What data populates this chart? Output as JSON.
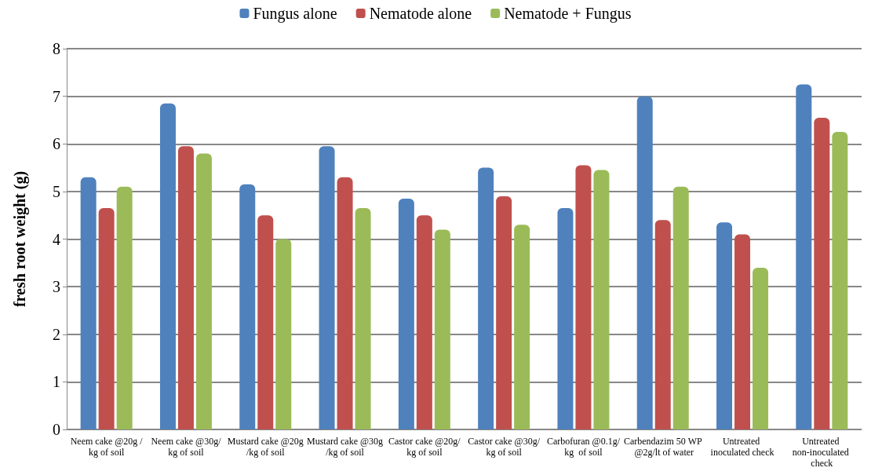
{
  "chart_data": {
    "type": "bar",
    "ylabel": "fresh root weight (g)",
    "categories": [
      "Neem cake @20g /kg of soil",
      "Neem cake @30g/kg of soil",
      "Mustard cake @20g/kg of soil",
      "Mustard cake @30g/kg of soil",
      "Castor cake @20g/kg of soil",
      "Castor cake @30g/kg of soil",
      "Carbofuran @0.1g/kg  of soil",
      "Carbendazim 50 WP @2g/lt of water",
      "Untreated inoculated check",
      "Untreated non-inoculated check"
    ],
    "series": [
      {
        "name": "Fungus alone",
        "color": "#4f81bd",
        "values": [
          5.3,
          6.85,
          5.15,
          5.95,
          4.85,
          5.5,
          4.65,
          7.0,
          4.35,
          7.25
        ]
      },
      {
        "name": "Nematode alone",
        "color": "#c0504d",
        "values": [
          4.65,
          5.95,
          4.5,
          5.3,
          4.5,
          4.9,
          5.55,
          4.4,
          4.1,
          6.55
        ]
      },
      {
        "name": "Nematode + Fungus",
        "color": "#9bbb59",
        "values": [
          5.1,
          5.8,
          4.0,
          4.65,
          4.2,
          4.3,
          5.45,
          5.1,
          3.4,
          6.25
        ]
      }
    ],
    "ylim": [
      0,
      8
    ],
    "yticks": [
      0,
      1,
      2,
      3,
      4,
      5,
      6,
      7,
      8
    ],
    "grid": "y",
    "legend": "top"
  }
}
